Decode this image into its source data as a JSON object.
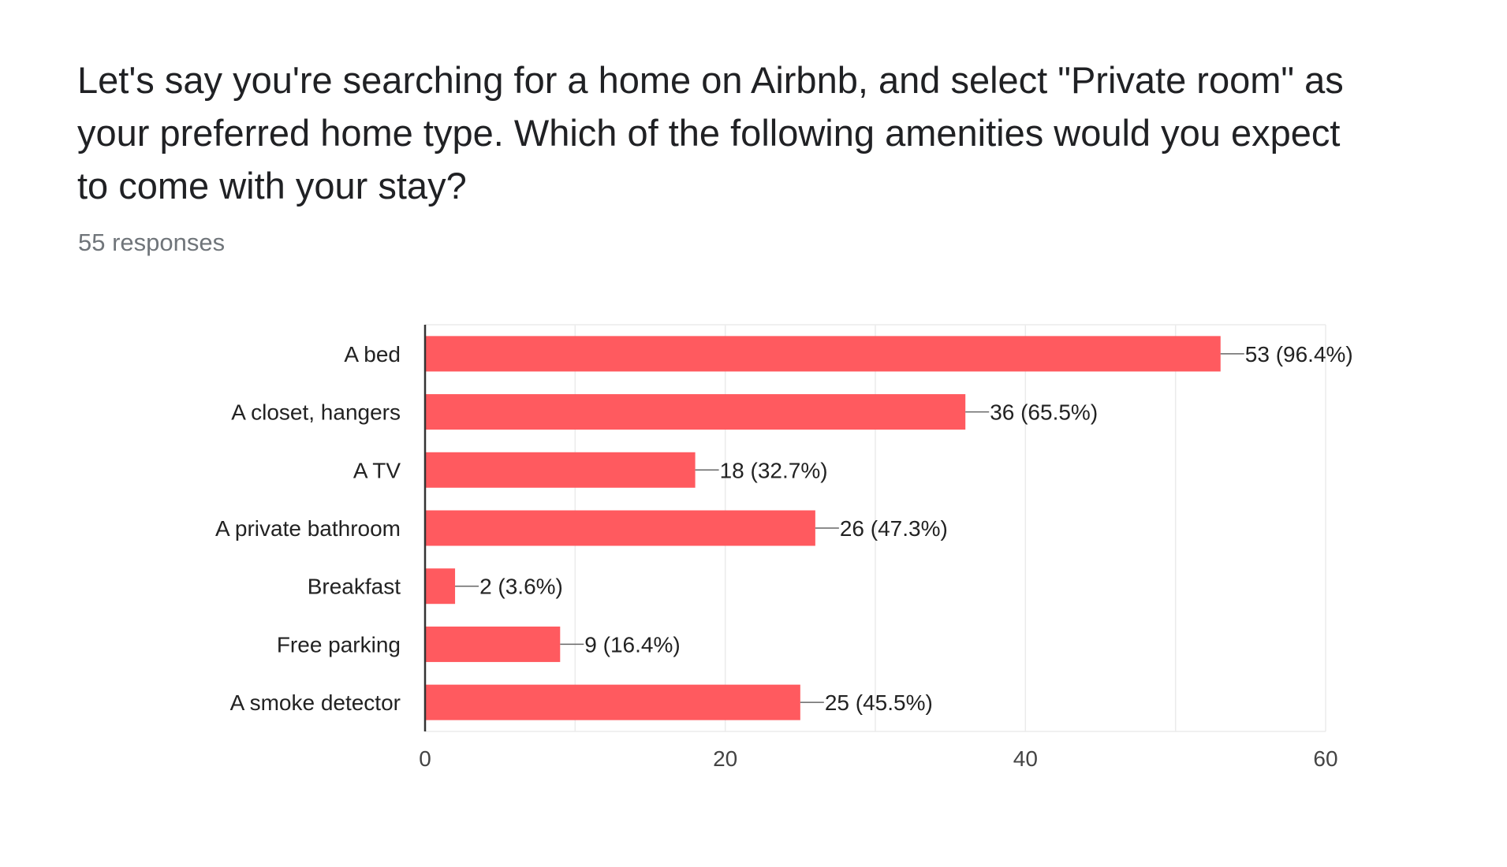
{
  "question": {
    "title": "Let's say you're searching for a home on Airbnb, and select \"Private room\" as your preferred home type. Which of the following amenities would you expect to come with your stay?",
    "response_count": "55 responses"
  },
  "colors": {
    "bar": "#ff5a5f",
    "grid": "#ebebeb",
    "axis": "#333333",
    "label_text": "#222222",
    "tick_text": "#444444"
  },
  "chart_data": {
    "type": "bar",
    "orientation": "horizontal",
    "categories": [
      "A bed",
      "A closet, hangers",
      "A TV",
      "A private bathroom",
      "Breakfast",
      "Free parking",
      "A smoke detector"
    ],
    "values": [
      53,
      36,
      18,
      26,
      2,
      9,
      25
    ],
    "data_labels": [
      "53 (96.4%)",
      "36 (65.5%)",
      "18 (32.7%)",
      "26 (47.3%)",
      "2 (3.6%)",
      "9 (16.4%)",
      "25 (45.5%)"
    ],
    "xlim": [
      0,
      60
    ],
    "x_ticks": [
      0,
      20,
      40,
      60
    ],
    "x_tick_labels": [
      "0",
      "20",
      "40",
      "60"
    ],
    "grid": true,
    "legend": "none"
  }
}
